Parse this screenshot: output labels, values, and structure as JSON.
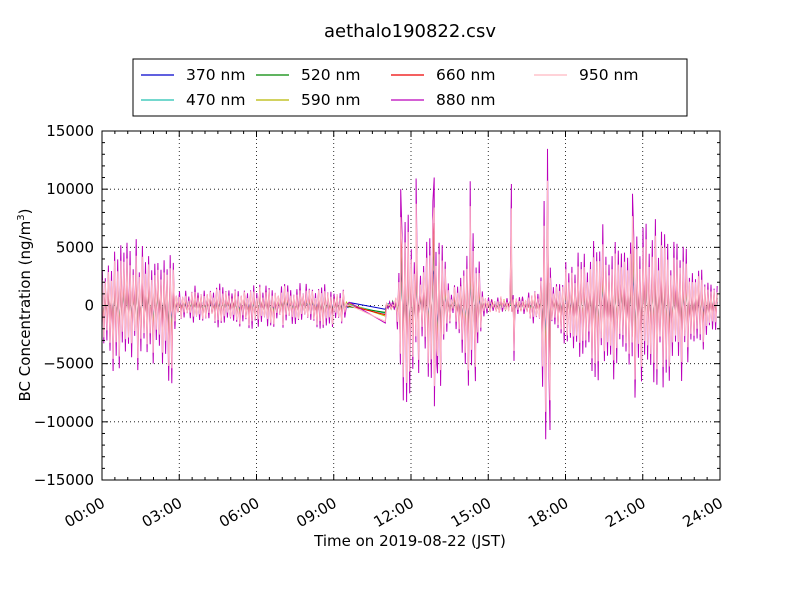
{
  "chart_data": {
    "type": "line",
    "title": "aethalo190822.csv",
    "xlabel": "Time on 2019-08-22 (JST)",
    "ylabel": "BC Concentration (ng/m",
    "ylabel_superscript": "3",
    "ylabel_suffix": ")",
    "xlim": [
      0,
      24
    ],
    "ylim": [
      -15000,
      15000
    ],
    "grid": true,
    "legend_position": "top-center",
    "x_ticks": [
      0,
      3,
      6,
      9,
      12,
      15,
      18,
      21,
      24
    ],
    "x_tick_labels": [
      "00:00",
      "03:00",
      "06:00",
      "09:00",
      "12:00",
      "15:00",
      "18:00",
      "21:00",
      "24:00"
    ],
    "y_ticks": [
      -15000,
      -10000,
      -5000,
      0,
      5000,
      10000,
      15000
    ],
    "y_tick_labels": [
      "−15000",
      "−10000",
      "−5000",
      "0",
      "5000",
      "10000",
      "15000"
    ],
    "series": [
      {
        "name": "370 nm",
        "color": "#0000cc",
        "scale": 0.3
      },
      {
        "name": "470 nm",
        "color": "#20c0b0",
        "scale": 0.4
      },
      {
        "name": "520 nm",
        "color": "#008800",
        "scale": 0.5
      },
      {
        "name": "590 nm",
        "color": "#b8b800",
        "scale": 0.58
      },
      {
        "name": "660 nm",
        "color": "#ee0000",
        "scale": 0.66
      },
      {
        "name": "880 nm",
        "color": "#bb00bb",
        "scale": 1.0
      },
      {
        "name": "950 nm",
        "color": "#ffb6c1",
        "scale": 0.78
      }
    ],
    "envelope": {
      "note_hours": [
        0.0,
        0.4,
        0.9,
        1.5,
        2.2,
        2.7,
        2.9,
        3.1,
        6.0,
        8.0,
        9.4,
        9.5,
        11.0,
        11.4,
        11.8,
        12.3,
        12.9,
        13.6,
        14.3,
        14.9,
        15.5,
        16.5,
        17.0,
        17.2,
        17.5,
        18.0,
        19.0,
        19.5,
        20.0,
        20.5,
        21.0,
        21.7,
        22.5,
        23.3,
        23.8
      ],
      "amplitude": [
        4000,
        6000,
        6500,
        5500,
        5000,
        7500,
        1000,
        1500,
        2000,
        2200,
        2000,
        0,
        0,
        500,
        10500,
        1500,
        10500,
        1000,
        8000,
        800,
        800,
        900,
        2000,
        13000,
        1500,
        4000,
        6000,
        7500,
        6000,
        7000,
        9500,
        7000,
        6500,
        4000,
        3000
      ]
    },
    "gaps": [
      [
        9.6,
        11.0
      ]
    ],
    "spikes": [
      {
        "x": 11.6,
        "y": 10000
      },
      {
        "x": 11.7,
        "y": -8000
      },
      {
        "x": 12.2,
        "y": 11000
      },
      {
        "x": 12.3,
        "y": -6000
      },
      {
        "x": 12.9,
        "y": 10800
      },
      {
        "x": 13.0,
        "y": -5000
      },
      {
        "x": 14.3,
        "y": 10800
      },
      {
        "x": 14.5,
        "y": -6500
      },
      {
        "x": 15.9,
        "y": 10600
      },
      {
        "x": 16.0,
        "y": -4800
      },
      {
        "x": 17.3,
        "y": 13500
      },
      {
        "x": 17.4,
        "y": -10500
      },
      {
        "x": 20.6,
        "y": 9800
      },
      {
        "x": 20.7,
        "y": -8000
      }
    ]
  }
}
